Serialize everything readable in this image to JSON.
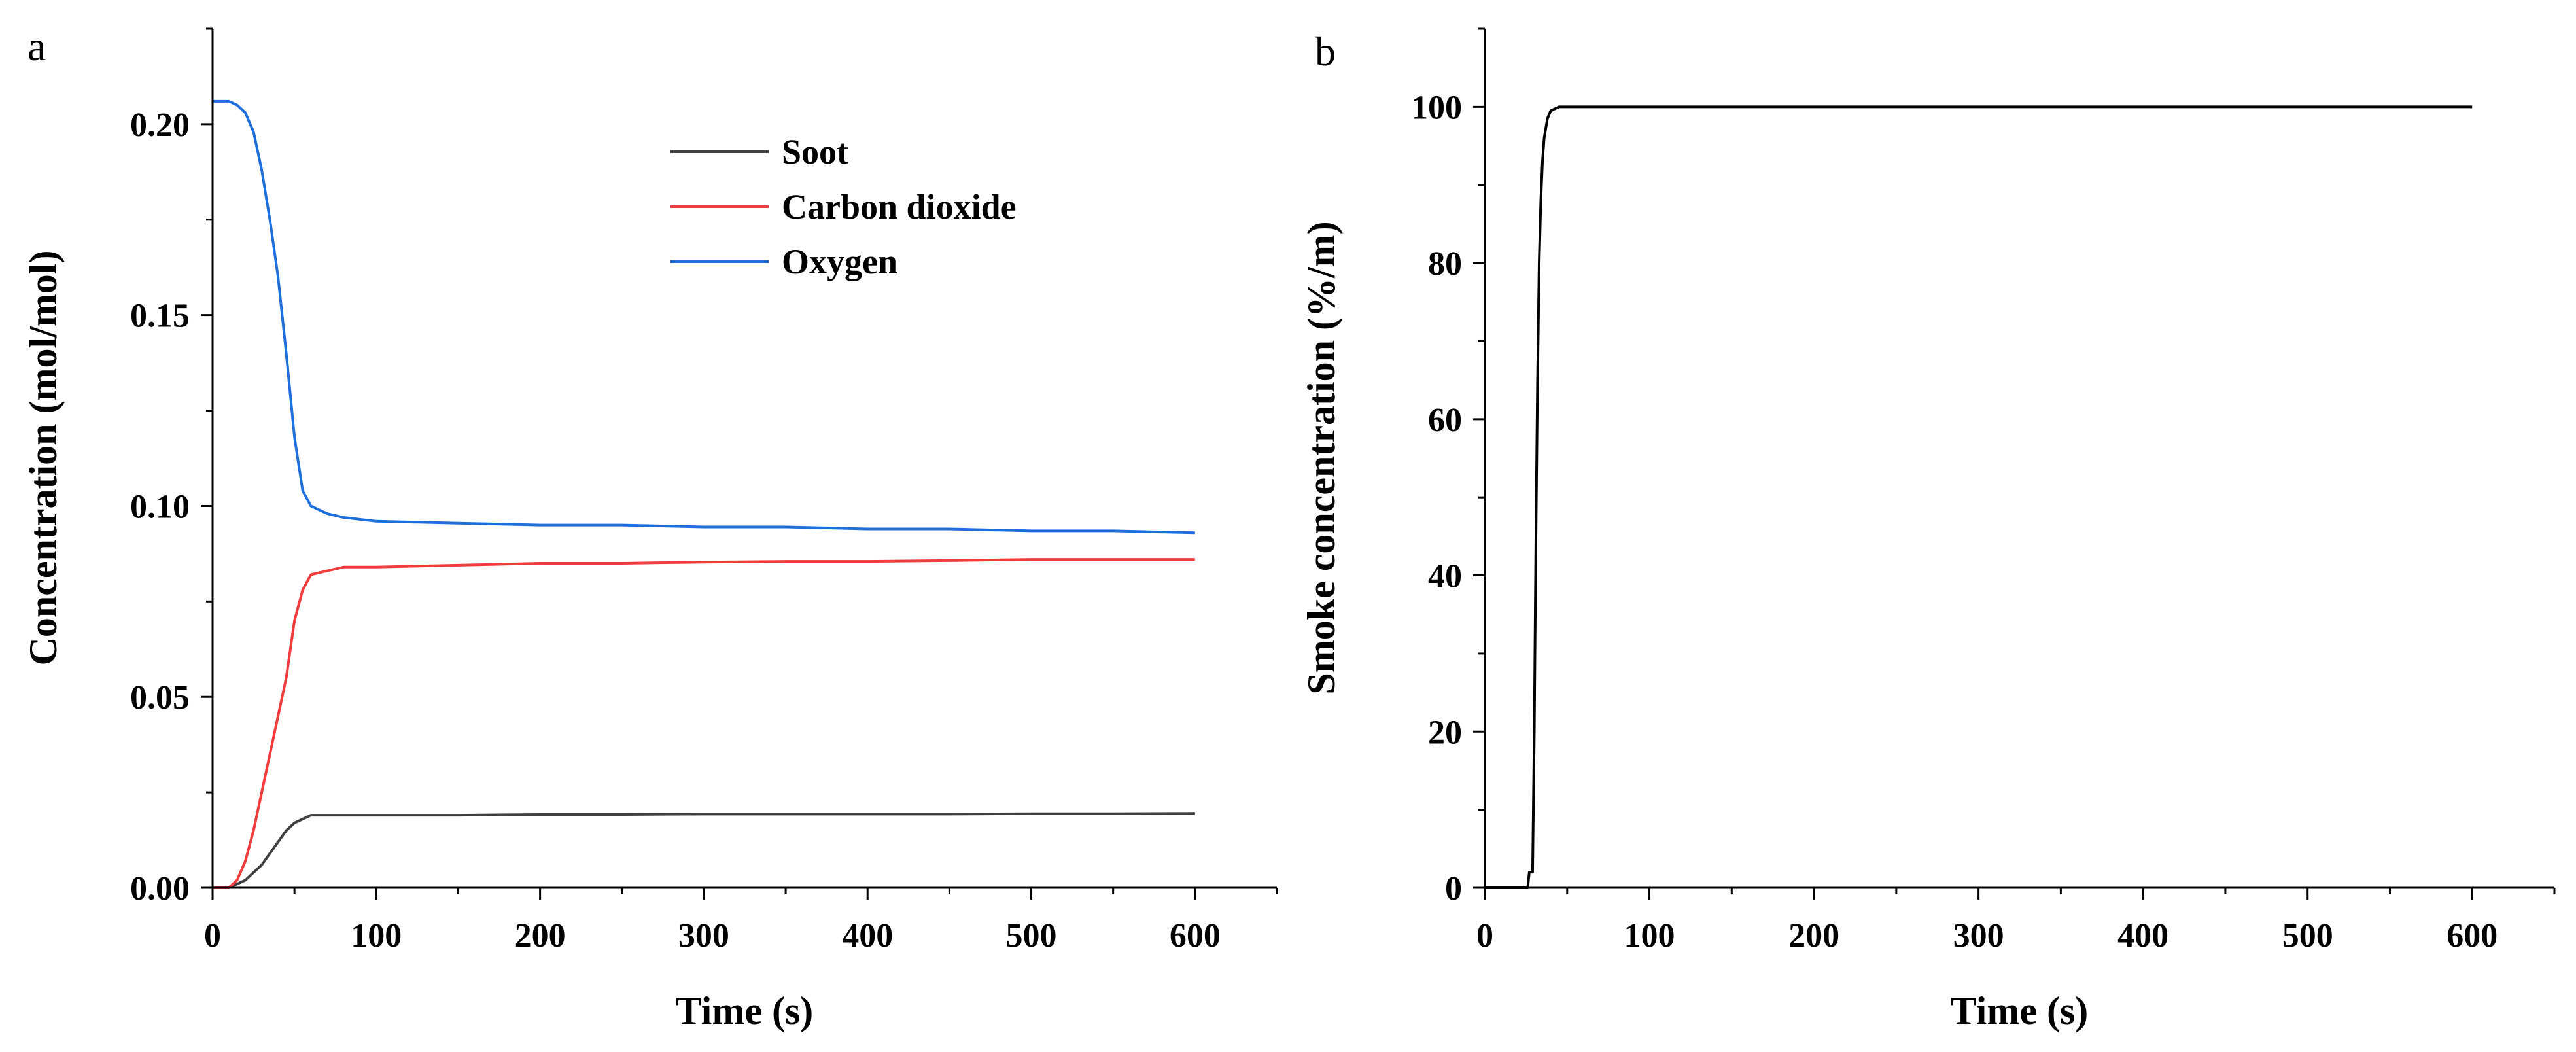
{
  "chart_data": [
    {
      "panel": "a",
      "type": "line",
      "xlabel": "Time (s)",
      "ylabel": "Concentration (mol/mol)",
      "xlim": [
        0,
        650
      ],
      "ylim": [
        0,
        0.225
      ],
      "xticks": [
        "0",
        "100",
        "200",
        "300",
        "400",
        "500",
        "600"
      ],
      "yticks": [
        "0.00",
        "0.05",
        "0.10",
        "0.15",
        "0.20"
      ],
      "legend": {
        "position": "top-center",
        "entries": [
          "Soot",
          "Carbon dioxide",
          "Oxygen"
        ]
      },
      "series": [
        {
          "name": "Soot",
          "color": "#404040",
          "x": [
            0,
            10,
            15,
            20,
            25,
            30,
            35,
            40,
            45,
            50,
            55,
            60,
            70,
            80,
            100,
            150,
            200,
            250,
            300,
            350,
            400,
            450,
            500,
            550,
            600
          ],
          "y": [
            0,
            0,
            0.001,
            0.002,
            0.004,
            0.006,
            0.009,
            0.012,
            0.015,
            0.017,
            0.018,
            0.019,
            0.019,
            0.019,
            0.019,
            0.019,
            0.0192,
            0.0192,
            0.0193,
            0.0193,
            0.0193,
            0.0193,
            0.0194,
            0.0194,
            0.0195
          ]
        },
        {
          "name": "Carbon dioxide",
          "color": "#f03c3c",
          "x": [
            0,
            10,
            15,
            20,
            25,
            30,
            35,
            40,
            45,
            50,
            55,
            60,
            70,
            80,
            100,
            150,
            200,
            250,
            300,
            350,
            400,
            450,
            500,
            550,
            600
          ],
          "y": [
            0,
            0,
            0.002,
            0.007,
            0.015,
            0.025,
            0.035,
            0.045,
            0.055,
            0.07,
            0.078,
            0.082,
            0.083,
            0.084,
            0.084,
            0.0845,
            0.085,
            0.085,
            0.0853,
            0.0855,
            0.0855,
            0.0857,
            0.086,
            0.086,
            0.086
          ]
        },
        {
          "name": "Oxygen",
          "color": "#1e6fdc",
          "x": [
            0,
            10,
            15,
            20,
            25,
            30,
            35,
            40,
            45,
            50,
            55,
            60,
            70,
            80,
            100,
            150,
            200,
            250,
            300,
            350,
            400,
            450,
            500,
            550,
            600
          ],
          "y": [
            0.206,
            0.206,
            0.205,
            0.203,
            0.198,
            0.188,
            0.175,
            0.16,
            0.14,
            0.118,
            0.104,
            0.1,
            0.098,
            0.097,
            0.096,
            0.0955,
            0.095,
            0.095,
            0.0945,
            0.0945,
            0.094,
            0.094,
            0.0935,
            0.0935,
            0.093
          ]
        }
      ]
    },
    {
      "panel": "b",
      "type": "line",
      "xlabel": "Time (s)",
      "ylabel": "Smoke concentration (%/m)",
      "xlim": [
        0,
        650
      ],
      "ylim": [
        0,
        110
      ],
      "xticks": [
        "0",
        "100",
        "200",
        "300",
        "400",
        "500",
        "600"
      ],
      "yticks": [
        "0",
        "20",
        "40",
        "60",
        "80",
        "100"
      ],
      "series": [
        {
          "name": "Smoke concentration",
          "color": "#000000",
          "x": [
            0,
            26,
            27,
            29,
            30,
            31,
            32,
            33,
            34,
            35,
            36,
            38,
            40,
            45,
            50,
            100,
            200,
            300,
            400,
            500,
            600
          ],
          "y": [
            0,
            0,
            2,
            2,
            20,
            45,
            65,
            80,
            88,
            93,
            96,
            98.5,
            99.5,
            100,
            100,
            100,
            100,
            100,
            100,
            100,
            100
          ]
        }
      ]
    }
  ]
}
